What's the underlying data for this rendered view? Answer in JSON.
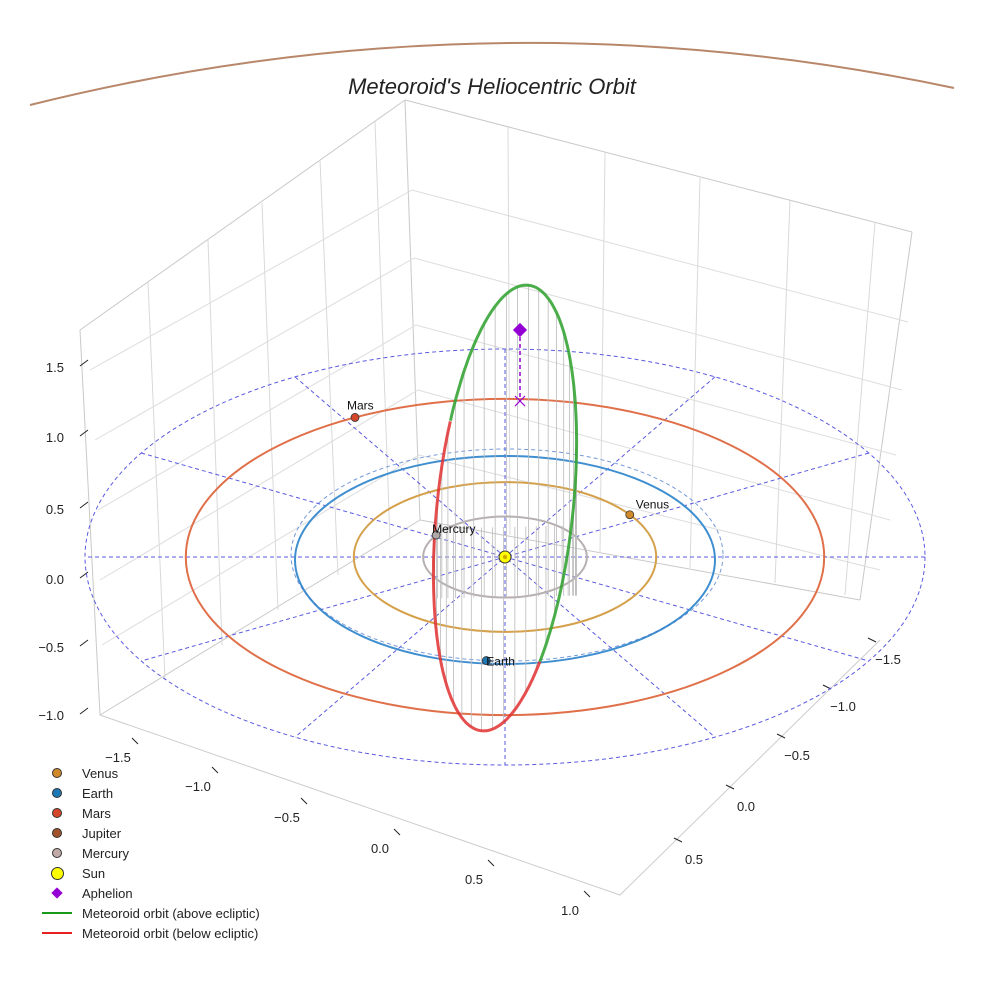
{
  "title": "Meteoroid's Heliocentric Orbit",
  "chart_data": {
    "type": "scatter3d",
    "title": "Meteoroid's Heliocentric Orbit",
    "axes": {
      "x": {
        "ticks": [
          -1.5,
          -1.0,
          -0.5,
          0.0,
          0.5,
          1.0
        ]
      },
      "y": {
        "ticks": [
          -1.5,
          -1.0,
          -0.5,
          0.0,
          0.5
        ]
      },
      "z": {
        "ticks": [
          1.5,
          1.0,
          0.5,
          0.0,
          -0.5,
          -1.0
        ]
      }
    },
    "planet_orbits_au": [
      {
        "name": "Mercury",
        "radius": 0.39,
        "color": "#b8b0b0"
      },
      {
        "name": "Venus",
        "radius": 0.72,
        "color": "#d4a04a"
      },
      {
        "name": "Earth",
        "radius": 1.0,
        "color": "#3f8fd0"
      },
      {
        "name": "Mars",
        "radius": 1.52,
        "color": "#e0704a"
      }
    ],
    "ecliptic_grid_radius": 2.0,
    "planets": [
      {
        "name": "Venus",
        "label": "Venus",
        "color": "#d08a2a"
      },
      {
        "name": "Earth",
        "label": "Earth",
        "color": "#1f77b4"
      },
      {
        "name": "Mars",
        "label": "Mars",
        "color": "#d4472a"
      },
      {
        "name": "Mercury",
        "label": "Mercury",
        "color": "#b0a8a8"
      }
    ],
    "sun": {
      "x": 0,
      "y": 0,
      "z": 0,
      "color": "#ffff00"
    },
    "meteoroid_orbit": {
      "above_color": "#2ca02c",
      "below_color": "#e03030",
      "aphelion_color": "#9400d3"
    }
  },
  "legend": [
    {
      "label": "Venus",
      "kind": "dot",
      "color": "#d08a2a"
    },
    {
      "label": "Earth",
      "kind": "dot",
      "color": "#1f77b4"
    },
    {
      "label": "Mars",
      "kind": "dot",
      "color": "#d4472a"
    },
    {
      "label": "Jupiter",
      "kind": "dot",
      "color": "#a0522d"
    },
    {
      "label": "Mercury",
      "kind": "dot",
      "color": "#c0aaa8"
    },
    {
      "label": "Sun",
      "kind": "bigdot",
      "color": "#ffff00"
    },
    {
      "label": "Aphelion",
      "kind": "diamond",
      "color": "#9400d3"
    },
    {
      "label": "Meteoroid orbit (above ecliptic)",
      "kind": "line",
      "color": "#1a9a1a"
    },
    {
      "label": "Meteoroid orbit (below ecliptic)",
      "kind": "line",
      "color": "#e82020"
    }
  ]
}
